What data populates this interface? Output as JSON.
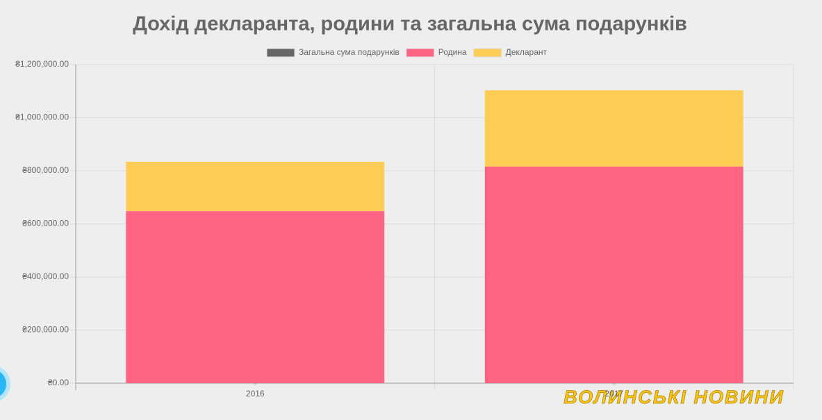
{
  "chart_data": {
    "type": "bar",
    "stacked": true,
    "title": "Дохід декларанта, родини та загальна сума подарунків",
    "categories": [
      "2016",
      "2017"
    ],
    "series": [
      {
        "name": "Загальна сума подарунків",
        "color": "#666666",
        "values": [
          0,
          0
        ]
      },
      {
        "name": "Родина",
        "color": "#ff6384",
        "values": [
          648000,
          816000
        ]
      },
      {
        "name": "Декларант",
        "color": "#ffcd56",
        "values": [
          186000,
          287000
        ]
      }
    ],
    "ylim": [
      0,
      1200000
    ],
    "yticks": [
      {
        "value": 0,
        "label": "₴0.00"
      },
      {
        "value": 200000,
        "label": "₴200,000.00"
      },
      {
        "value": 400000,
        "label": "₴400,000.00"
      },
      {
        "value": 600000,
        "label": "₴600,000.00"
      },
      {
        "value": 800000,
        "label": "₴800,000.00"
      },
      {
        "value": 1000000,
        "label": "₴1,000,000.00"
      },
      {
        "value": 1200000,
        "label": "₴1,200,000.00"
      }
    ],
    "grid": true,
    "legend": "top",
    "watermark": "ВОЛИНСЬКІ НОВИНИ"
  }
}
